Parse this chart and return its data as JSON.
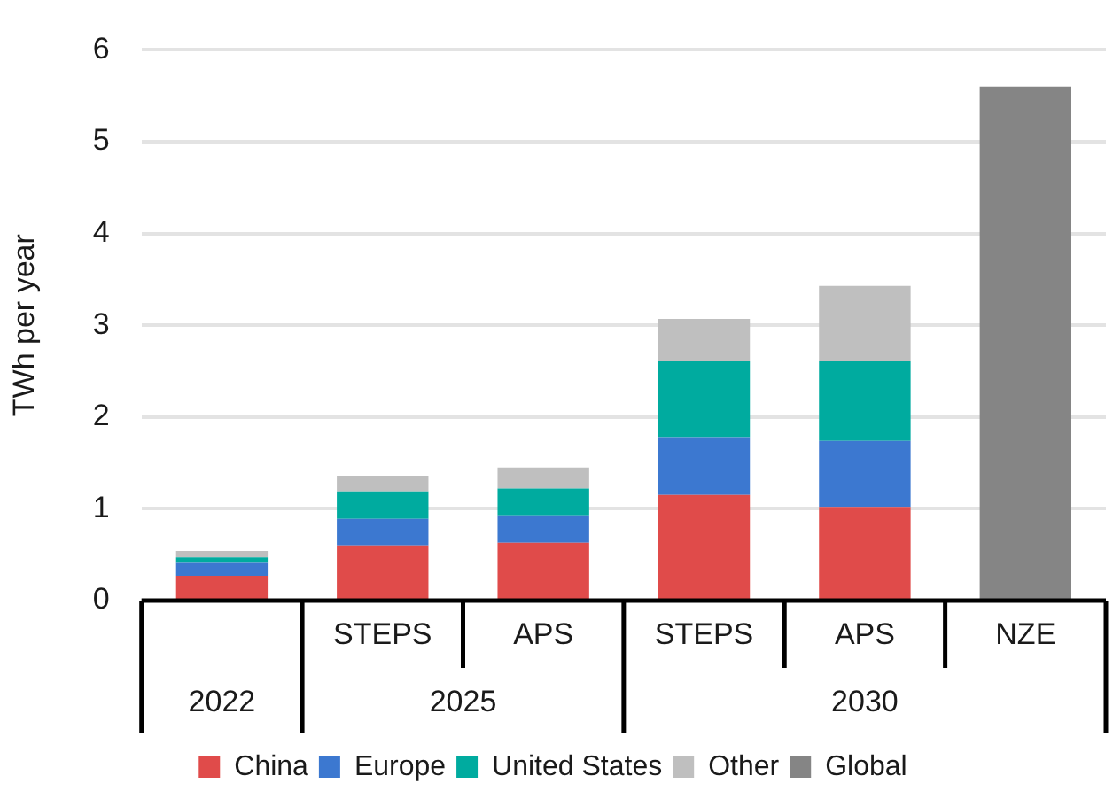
{
  "chart_data": {
    "type": "bar",
    "stacked": true,
    "ylabel": "TWh per year",
    "categories": [
      null,
      "STEPS",
      "APS",
      "STEPS",
      "APS",
      "NZE"
    ],
    "series": [
      {
        "name": "China",
        "color": "#e04b4a",
        "values": [
          0.27,
          0.6,
          0.63,
          1.15,
          1.02,
          null
        ]
      },
      {
        "name": "Europe",
        "color": "#3c78d0",
        "values": [
          0.14,
          0.29,
          0.3,
          0.63,
          0.72,
          null
        ]
      },
      {
        "name": "United States",
        "color": "#00ab9f",
        "values": [
          0.06,
          0.3,
          0.29,
          0.83,
          0.87,
          null
        ]
      },
      {
        "name": "Other",
        "color": "#bfbfbf",
        "values": [
          0.07,
          0.17,
          0.23,
          0.46,
          0.82,
          null
        ]
      },
      {
        "name": "Global",
        "color": "#858585",
        "values": [
          null,
          null,
          null,
          null,
          null,
          5.6
        ]
      }
    ],
    "ylim": [
      0,
      6
    ],
    "yticks": [
      0,
      1,
      2,
      3,
      4,
      5,
      6
    ],
    "grid": "y",
    "legend": "bottom",
    "annotations": [
      "2022",
      "2025",
      "2030"
    ]
  }
}
